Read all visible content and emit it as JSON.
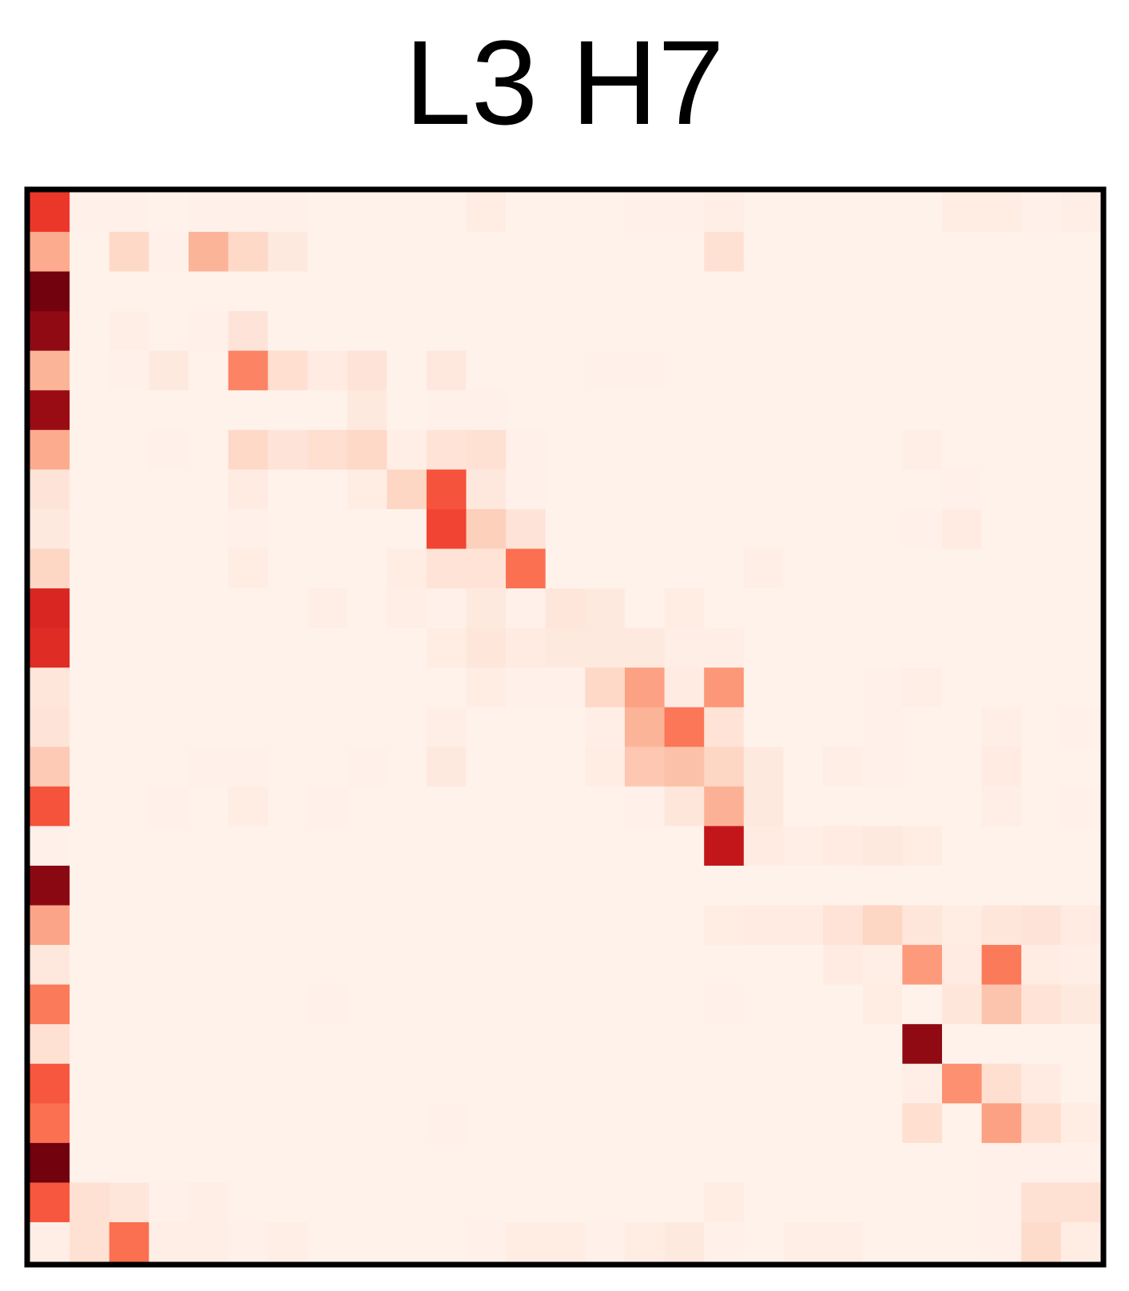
{
  "chart_data": {
    "type": "heatmap",
    "title": "L3 H7",
    "xlabel": "",
    "ylabel": "",
    "grid": false,
    "colormap": "Reds",
    "value_range": [
      0,
      1
    ],
    "rows": 27,
    "cols": 27,
    "values": [
      [
        0.64,
        0.03,
        0.03,
        0.02,
        0.03,
        0.03,
        0.03,
        0.02,
        0.02,
        0.02,
        0.02,
        0.05,
        0.02,
        0.02,
        0.02,
        0.03,
        0.03,
        0.04,
        0.02,
        0.02,
        0.02,
        0.02,
        0.02,
        0.05,
        0.05,
        0.03,
        0.04
      ],
      [
        0.3,
        0.02,
        0.15,
        0.03,
        0.27,
        0.15,
        0.07,
        0.02,
        0.02,
        0.02,
        0.02,
        0.02,
        0.02,
        0.02,
        0.02,
        0.02,
        0.02,
        0.12,
        0.02,
        0.02,
        0.02,
        0.02,
        0.02,
        0.02,
        0.02,
        0.02,
        0.02
      ],
      [
        0.98,
        0.02,
        0.02,
        0.02,
        0.02,
        0.02,
        0.02,
        0.02,
        0.02,
        0.02,
        0.02,
        0.02,
        0.02,
        0.02,
        0.02,
        0.02,
        0.02,
        0.02,
        0.02,
        0.02,
        0.02,
        0.02,
        0.02,
        0.02,
        0.02,
        0.02,
        0.02
      ],
      [
        0.92,
        0.02,
        0.04,
        0.02,
        0.03,
        0.1,
        0.02,
        0.02,
        0.02,
        0.02,
        0.02,
        0.02,
        0.02,
        0.02,
        0.02,
        0.02,
        0.02,
        0.02,
        0.02,
        0.02,
        0.02,
        0.02,
        0.02,
        0.02,
        0.02,
        0.02,
        0.02
      ],
      [
        0.27,
        0.02,
        0.03,
        0.07,
        0.02,
        0.42,
        0.13,
        0.06,
        0.1,
        0.02,
        0.08,
        0.02,
        0.02,
        0.02,
        0.03,
        0.03,
        0.02,
        0.02,
        0.02,
        0.02,
        0.02,
        0.02,
        0.02,
        0.02,
        0.02,
        0.02,
        0.02
      ],
      [
        0.9,
        0.02,
        0.02,
        0.02,
        0.02,
        0.02,
        0.02,
        0.02,
        0.07,
        0.02,
        0.03,
        0.03,
        0.02,
        0.02,
        0.02,
        0.02,
        0.02,
        0.02,
        0.02,
        0.02,
        0.02,
        0.02,
        0.02,
        0.02,
        0.02,
        0.02,
        0.02
      ],
      [
        0.3,
        0.02,
        0.02,
        0.03,
        0.02,
        0.15,
        0.1,
        0.13,
        0.15,
        0.04,
        0.11,
        0.12,
        0.03,
        0.02,
        0.02,
        0.02,
        0.02,
        0.02,
        0.02,
        0.02,
        0.02,
        0.02,
        0.04,
        0.02,
        0.02,
        0.02,
        0.02
      ],
      [
        0.1,
        0.02,
        0.02,
        0.02,
        0.02,
        0.06,
        0.02,
        0.02,
        0.05,
        0.16,
        0.56,
        0.08,
        0.03,
        0.02,
        0.02,
        0.02,
        0.02,
        0.02,
        0.02,
        0.02,
        0.02,
        0.02,
        0.02,
        0.03,
        0.02,
        0.02,
        0.02
      ],
      [
        0.07,
        0.02,
        0.02,
        0.02,
        0.02,
        0.03,
        0.02,
        0.02,
        0.02,
        0.02,
        0.6,
        0.18,
        0.1,
        0.02,
        0.02,
        0.02,
        0.02,
        0.02,
        0.02,
        0.02,
        0.02,
        0.02,
        0.03,
        0.06,
        0.02,
        0.02,
        0.02
      ],
      [
        0.16,
        0.02,
        0.02,
        0.02,
        0.02,
        0.05,
        0.02,
        0.02,
        0.02,
        0.05,
        0.11,
        0.11,
        0.48,
        0.02,
        0.02,
        0.02,
        0.02,
        0.02,
        0.04,
        0.02,
        0.02,
        0.02,
        0.02,
        0.02,
        0.02,
        0.02,
        0.02
      ],
      [
        0.7,
        0.02,
        0.02,
        0.02,
        0.02,
        0.02,
        0.02,
        0.04,
        0.02,
        0.04,
        0.03,
        0.07,
        0.03,
        0.09,
        0.07,
        0.02,
        0.05,
        0.02,
        0.02,
        0.02,
        0.02,
        0.02,
        0.02,
        0.02,
        0.02,
        0.02,
        0.02
      ],
      [
        0.68,
        0.02,
        0.02,
        0.02,
        0.02,
        0.02,
        0.02,
        0.02,
        0.02,
        0.02,
        0.05,
        0.09,
        0.06,
        0.07,
        0.07,
        0.07,
        0.04,
        0.04,
        0.02,
        0.02,
        0.02,
        0.02,
        0.02,
        0.02,
        0.02,
        0.02,
        0.02
      ],
      [
        0.09,
        0.02,
        0.02,
        0.02,
        0.02,
        0.02,
        0.02,
        0.02,
        0.02,
        0.02,
        0.02,
        0.05,
        0.03,
        0.03,
        0.15,
        0.33,
        0.06,
        0.36,
        0.02,
        0.02,
        0.02,
        0.03,
        0.04,
        0.02,
        0.02,
        0.02,
        0.02
      ],
      [
        0.1,
        0.02,
        0.02,
        0.02,
        0.02,
        0.02,
        0.02,
        0.02,
        0.02,
        0.02,
        0.04,
        0.02,
        0.02,
        0.02,
        0.04,
        0.27,
        0.46,
        0.11,
        0.02,
        0.02,
        0.02,
        0.03,
        0.02,
        0.02,
        0.04,
        0.02,
        0.03
      ],
      [
        0.2,
        0.02,
        0.02,
        0.02,
        0.03,
        0.03,
        0.02,
        0.02,
        0.03,
        0.02,
        0.07,
        0.02,
        0.02,
        0.02,
        0.05,
        0.21,
        0.23,
        0.16,
        0.07,
        0.02,
        0.04,
        0.03,
        0.02,
        0.02,
        0.06,
        0.02,
        0.02
      ],
      [
        0.56,
        0.02,
        0.02,
        0.03,
        0.02,
        0.05,
        0.02,
        0.03,
        0.02,
        0.02,
        0.02,
        0.02,
        0.02,
        0.02,
        0.02,
        0.03,
        0.09,
        0.28,
        0.07,
        0.02,
        0.02,
        0.02,
        0.02,
        0.02,
        0.04,
        0.02,
        0.03
      ],
      [
        0.03,
        0.02,
        0.02,
        0.02,
        0.02,
        0.02,
        0.02,
        0.02,
        0.02,
        0.02,
        0.02,
        0.02,
        0.02,
        0.02,
        0.02,
        0.02,
        0.02,
        0.78,
        0.06,
        0.04,
        0.06,
        0.07,
        0.05,
        0.02,
        0.02,
        0.02,
        0.02
      ],
      [
        0.93,
        0.02,
        0.02,
        0.02,
        0.02,
        0.02,
        0.02,
        0.02,
        0.02,
        0.02,
        0.02,
        0.02,
        0.02,
        0.02,
        0.02,
        0.02,
        0.02,
        0.02,
        0.02,
        0.02,
        0.02,
        0.02,
        0.02,
        0.02,
        0.02,
        0.02,
        0.02
      ],
      [
        0.32,
        0.02,
        0.02,
        0.02,
        0.02,
        0.02,
        0.02,
        0.02,
        0.02,
        0.02,
        0.02,
        0.02,
        0.02,
        0.02,
        0.02,
        0.02,
        0.02,
        0.05,
        0.06,
        0.06,
        0.11,
        0.16,
        0.09,
        0.05,
        0.09,
        0.1,
        0.06
      ],
      [
        0.08,
        0.02,
        0.02,
        0.02,
        0.02,
        0.02,
        0.02,
        0.02,
        0.02,
        0.02,
        0.02,
        0.02,
        0.02,
        0.02,
        0.02,
        0.02,
        0.02,
        0.02,
        0.02,
        0.02,
        0.06,
        0.04,
        0.35,
        0.06,
        0.45,
        0.05,
        0.04
      ],
      [
        0.45,
        0.02,
        0.02,
        0.02,
        0.02,
        0.02,
        0.02,
        0.03,
        0.02,
        0.02,
        0.02,
        0.02,
        0.02,
        0.02,
        0.02,
        0.02,
        0.02,
        0.03,
        0.02,
        0.02,
        0.02,
        0.05,
        0.02,
        0.09,
        0.22,
        0.11,
        0.07
      ],
      [
        0.12,
        0.02,
        0.02,
        0.02,
        0.02,
        0.02,
        0.02,
        0.02,
        0.02,
        0.02,
        0.02,
        0.02,
        0.02,
        0.02,
        0.02,
        0.02,
        0.02,
        0.02,
        0.02,
        0.02,
        0.02,
        0.02,
        0.92,
        0.02,
        0.02,
        0.02,
        0.02
      ],
      [
        0.55,
        0.02,
        0.02,
        0.02,
        0.02,
        0.02,
        0.02,
        0.02,
        0.02,
        0.02,
        0.02,
        0.02,
        0.02,
        0.02,
        0.02,
        0.02,
        0.02,
        0.02,
        0.02,
        0.02,
        0.02,
        0.02,
        0.04,
        0.38,
        0.13,
        0.06,
        0.02
      ],
      [
        0.48,
        0.02,
        0.02,
        0.02,
        0.02,
        0.02,
        0.02,
        0.02,
        0.02,
        0.02,
        0.03,
        0.02,
        0.02,
        0.02,
        0.02,
        0.02,
        0.02,
        0.02,
        0.02,
        0.02,
        0.02,
        0.02,
        0.13,
        0.02,
        0.33,
        0.13,
        0.05
      ],
      [
        0.98,
        0.02,
        0.02,
        0.02,
        0.02,
        0.02,
        0.02,
        0.02,
        0.02,
        0.02,
        0.02,
        0.02,
        0.02,
        0.02,
        0.02,
        0.02,
        0.02,
        0.02,
        0.02,
        0.02,
        0.02,
        0.02,
        0.02,
        0.02,
        0.03,
        0.03,
        0.03
      ],
      [
        0.55,
        0.12,
        0.09,
        0.03,
        0.04,
        0.02,
        0.02,
        0.02,
        0.02,
        0.02,
        0.02,
        0.02,
        0.02,
        0.02,
        0.02,
        0.02,
        0.02,
        0.05,
        0.02,
        0.02,
        0.02,
        0.02,
        0.02,
        0.02,
        0.03,
        0.12,
        0.12
      ],
      [
        0.04,
        0.12,
        0.48,
        0.04,
        0.04,
        0.03,
        0.04,
        0.02,
        0.02,
        0.02,
        0.02,
        0.03,
        0.05,
        0.05,
        0.03,
        0.05,
        0.07,
        0.03,
        0.02,
        0.04,
        0.04,
        0.02,
        0.02,
        0.02,
        0.03,
        0.14,
        0.05
      ]
    ]
  }
}
